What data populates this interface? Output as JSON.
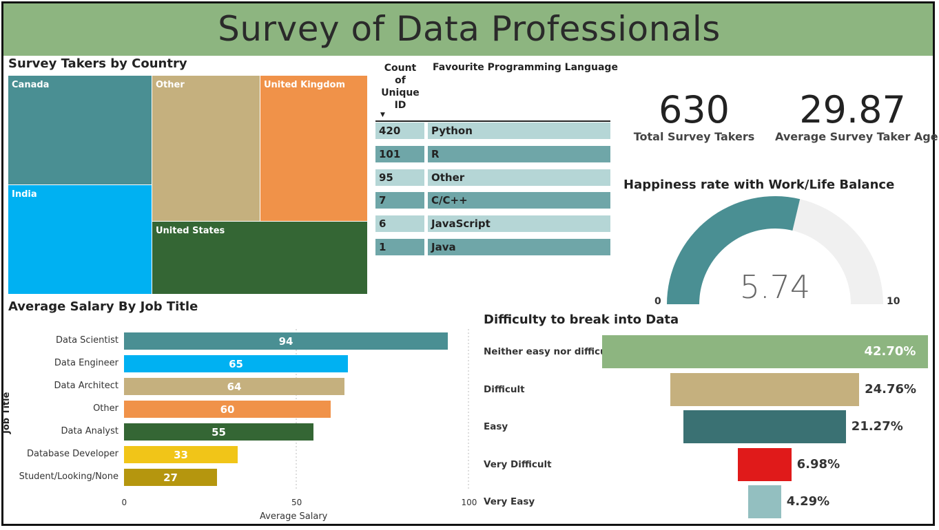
{
  "title": "Survey of Data Professionals",
  "treemap": {
    "title": "Survey Takers by Country",
    "cells": [
      {
        "label": "Canada",
        "color": "#4a8f93"
      },
      {
        "label": "India",
        "color": "#00b1f2"
      },
      {
        "label": "Other",
        "color": "#c5b07e"
      },
      {
        "label": "United Kingdom",
        "color": "#f09249"
      },
      {
        "label": "United States",
        "color": "#346634"
      }
    ]
  },
  "table": {
    "col1_header": "Count of Unique ID",
    "col2_header": "Favourite Programming Language",
    "rows": [
      {
        "count": "420",
        "language": "Python"
      },
      {
        "count": "101",
        "language": "R"
      },
      {
        "count": "95",
        "language": "Other"
      },
      {
        "count": "7",
        "language": "C/C++"
      },
      {
        "count": "6",
        "language": "JavaScript"
      },
      {
        "count": "1",
        "language": "Java"
      }
    ]
  },
  "kpis": {
    "total": {
      "value": "630",
      "label": "Total Survey Takers"
    },
    "age": {
      "value": "29.87",
      "label": "Average Survey Taker Age"
    }
  },
  "gauge": {
    "title": "Happiness rate with Work/Life Balance",
    "value": 5.74,
    "value_label": "5.74",
    "min": 0,
    "max": 10,
    "min_label": "0",
    "max_label": "10",
    "fill_color": "#4a8f93",
    "track_color": "#f0f0f0"
  },
  "chart_data": [
    {
      "type": "bar",
      "orientation": "horizontal",
      "title": "Average Salary By Job Title",
      "xlabel": "Average Salary",
      "ylabel": "Job Title",
      "xlim": [
        0,
        100
      ],
      "xticks": [
        "0",
        "50",
        "100"
      ],
      "categories": [
        "Data Scientist",
        "Data Engineer",
        "Data Architect",
        "Other",
        "Data Analyst",
        "Database Developer",
        "Student/Looking/None"
      ],
      "values": [
        94,
        65,
        64,
        60,
        55,
        33,
        27
      ],
      "colors": [
        "#4a8f93",
        "#00b1f2",
        "#c5b07e",
        "#f09249",
        "#346634",
        "#f1c518",
        "#b5960e"
      ]
    },
    {
      "type": "funnel",
      "title": "Difficulty to break into Data",
      "categories": [
        "Neither easy nor difficult",
        "Difficult",
        "Easy",
        "Very Difficult",
        "Very Easy"
      ],
      "values": [
        42.7,
        24.76,
        21.27,
        6.98,
        4.29
      ],
      "labels": [
        "42.70%",
        "24.76%",
        "21.27%",
        "6.98%",
        "4.29%"
      ],
      "colors": [
        "#8db580",
        "#c5b07e",
        "#3a7173",
        "#e01a1a",
        "#93bfc0"
      ]
    }
  ]
}
